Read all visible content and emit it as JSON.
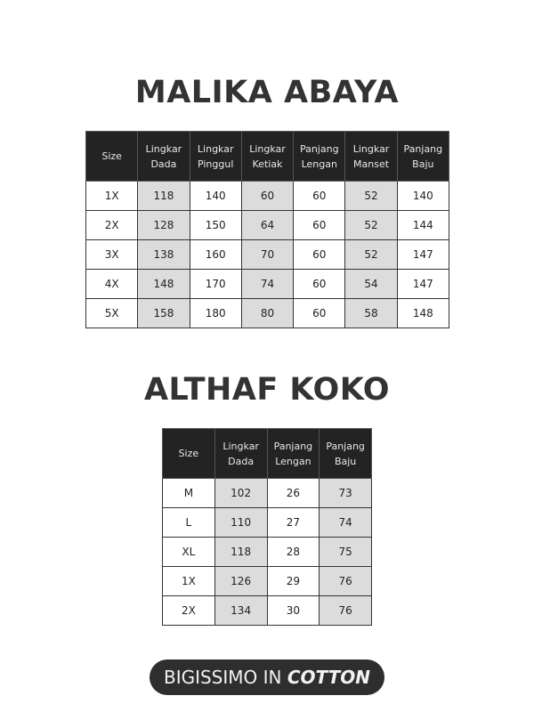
{
  "tables": [
    {
      "title": "MALIKA ABAYA",
      "headers": [
        "Size",
        "Lingkar\nDada",
        "Lingkar\nPinggul",
        "Lingkar\nKetiak",
        "Panjang\nLengan",
        "Lingkar\nManset",
        "Panjang\nBaju"
      ],
      "shaded_columns": [
        1,
        3,
        5
      ],
      "rows": [
        [
          "1X",
          "118",
          "140",
          "60",
          "60",
          "52",
          "140"
        ],
        [
          "2X",
          "128",
          "150",
          "64",
          "60",
          "52",
          "144"
        ],
        [
          "3X",
          "138",
          "160",
          "70",
          "60",
          "52",
          "147"
        ],
        [
          "4X",
          "148",
          "170",
          "74",
          "60",
          "54",
          "147"
        ],
        [
          "5X",
          "158",
          "180",
          "80",
          "60",
          "58",
          "148"
        ]
      ]
    },
    {
      "title": "ALTHAF KOKO",
      "headers": [
        "Size",
        "Lingkar\nDada",
        "Panjang\nLengan",
        "Panjang\nBaju"
      ],
      "shaded_columns": [
        1,
        3
      ],
      "rows": [
        [
          "M",
          "102",
          "26",
          "73"
        ],
        [
          "L",
          "110",
          "27",
          "74"
        ],
        [
          "XL",
          "118",
          "28",
          "75"
        ],
        [
          "1X",
          "126",
          "29",
          "76"
        ],
        [
          "2X",
          "134",
          "30",
          "76"
        ]
      ]
    }
  ],
  "footer": {
    "prefix": "BIGISSIMO IN ",
    "emphasis": "COTTON"
  },
  "colors": {
    "header_bg": "#232323",
    "shade": "#dcdcdc",
    "pill_bg": "#2e2e2e",
    "title": "#333333"
  }
}
